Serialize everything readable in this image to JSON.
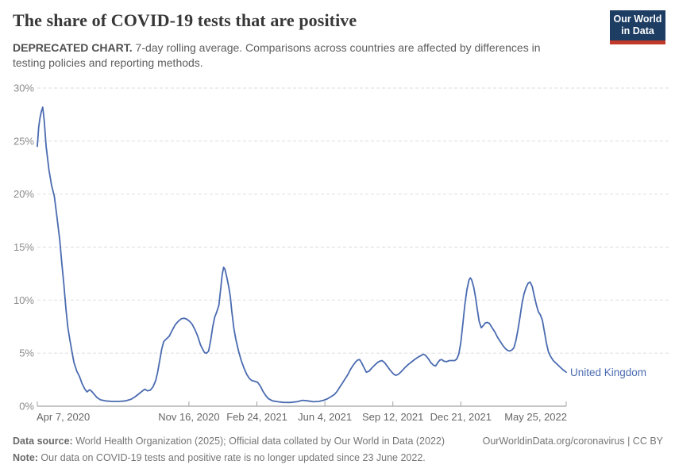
{
  "header": {
    "title": "The share of COVID-19 tests that are positive",
    "subtitle_bold": "DEPRECATED CHART.",
    "subtitle_rest": " 7-day rolling average. Comparisons across countries are affected by differences in testing policies and reporting methods.",
    "logo_line1": "Our World",
    "logo_line2": "in Data"
  },
  "footer": {
    "source_bold": "Data source:",
    "source_rest": " World Health Organization (2025); Official data collated by Our World in Data (2022)",
    "rights": "OurWorldinData.org/coronavirus | CC BY",
    "note_bold": "Note:",
    "note_rest": " Our data on COVID-19 tests and positive rate is no longer updated since 23 June 2022."
  },
  "colors": {
    "line": "#4a6bb0",
    "series_label": "#4a6bb0",
    "logo_navy": "#1d3d63",
    "logo_red": "#c0392b",
    "gridline": "#e2e2e2",
    "axis": "#a3a3a3",
    "y_tick_label": "#8b8b8b",
    "x_tick_label": "#676767"
  },
  "chart_data": {
    "type": "line",
    "title": "The share of COVID-19 tests that are positive",
    "subtitle": "DEPRECATED CHART. 7-day rolling average. Comparisons across countries are affected by differences in testing policies and reporting methods.",
    "xlabel": "",
    "ylabel": "",
    "grid": "horizontal-dashed",
    "legend_position": "end-of-line",
    "ylim": [
      0,
      30
    ],
    "y_ticks": [
      0,
      5,
      10,
      15,
      20,
      25,
      30
    ],
    "y_tick_labels": [
      "0%",
      "5%",
      "10%",
      "15%",
      "20%",
      "25%",
      "30%"
    ],
    "x_domain_days": [
      0,
      778
    ],
    "x_ticks": [
      {
        "day": 0,
        "label": "Apr 7, 2020"
      },
      {
        "day": 223,
        "label": "Nov 16, 2020"
      },
      {
        "day": 323,
        "label": "Feb 24, 2021"
      },
      {
        "day": 423,
        "label": "Jun 4, 2021"
      },
      {
        "day": 523,
        "label": "Sep 12, 2021"
      },
      {
        "day": 623,
        "label": "Dec 21, 2021"
      },
      {
        "day": 778,
        "label": "May 25, 2022"
      }
    ],
    "series": [
      {
        "name": "United Kingdom",
        "color": "#4a6bb0",
        "points": [
          [
            0,
            24.5
          ],
          [
            2,
            26.3
          ],
          [
            4,
            27.2
          ],
          [
            6,
            27.8
          ],
          [
            8,
            28.2
          ],
          [
            10,
            27.0
          ],
          [
            13,
            24.5
          ],
          [
            17,
            22.3
          ],
          [
            21,
            20.8
          ],
          [
            25,
            19.8
          ],
          [
            29,
            17.8
          ],
          [
            33,
            15.7
          ],
          [
            36,
            13.5
          ],
          [
            39,
            11.5
          ],
          [
            42,
            9.2
          ],
          [
            45,
            7.4
          ],
          [
            48,
            6.2
          ],
          [
            51,
            5.1
          ],
          [
            54,
            4.1
          ],
          [
            58,
            3.3
          ],
          [
            62,
            2.8
          ],
          [
            66,
            2.1
          ],
          [
            70,
            1.6
          ],
          [
            73,
            1.35
          ],
          [
            77,
            1.55
          ],
          [
            80,
            1.4
          ],
          [
            84,
            1.1
          ],
          [
            88,
            0.8
          ],
          [
            93,
            0.6
          ],
          [
            100,
            0.5
          ],
          [
            110,
            0.45
          ],
          [
            120,
            0.45
          ],
          [
            130,
            0.5
          ],
          [
            138,
            0.65
          ],
          [
            144,
            0.9
          ],
          [
            150,
            1.2
          ],
          [
            155,
            1.45
          ],
          [
            158,
            1.6
          ],
          [
            162,
            1.45
          ],
          [
            166,
            1.5
          ],
          [
            170,
            1.8
          ],
          [
            174,
            2.4
          ],
          [
            177,
            3.2
          ],
          [
            180,
            4.3
          ],
          [
            183,
            5.4
          ],
          [
            186,
            6.1
          ],
          [
            190,
            6.35
          ],
          [
            194,
            6.6
          ],
          [
            198,
            7.1
          ],
          [
            203,
            7.7
          ],
          [
            208,
            8.05
          ],
          [
            212,
            8.25
          ],
          [
            216,
            8.3
          ],
          [
            220,
            8.2
          ],
          [
            224,
            8.0
          ],
          [
            228,
            7.7
          ],
          [
            232,
            7.2
          ],
          [
            236,
            6.6
          ],
          [
            240,
            5.8
          ],
          [
            243,
            5.4
          ],
          [
            246,
            5.05
          ],
          [
            249,
            5.0
          ],
          [
            252,
            5.2
          ],
          [
            255,
            6.2
          ],
          [
            258,
            7.5
          ],
          [
            261,
            8.4
          ],
          [
            264,
            8.9
          ],
          [
            267,
            9.5
          ],
          [
            270,
            11.2
          ],
          [
            272,
            12.4
          ],
          [
            274,
            13.1
          ],
          [
            276,
            12.9
          ],
          [
            279,
            12.1
          ],
          [
            282,
            11.1
          ],
          [
            284,
            10.3
          ],
          [
            286,
            9.0
          ],
          [
            289,
            7.4
          ],
          [
            292,
            6.3
          ],
          [
            296,
            5.2
          ],
          [
            300,
            4.3
          ],
          [
            304,
            3.6
          ],
          [
            308,
            3.0
          ],
          [
            312,
            2.6
          ],
          [
            316,
            2.4
          ],
          [
            320,
            2.35
          ],
          [
            324,
            2.25
          ],
          [
            328,
            1.9
          ],
          [
            332,
            1.4
          ],
          [
            336,
            1.0
          ],
          [
            340,
            0.7
          ],
          [
            346,
            0.5
          ],
          [
            354,
            0.42
          ],
          [
            362,
            0.36
          ],
          [
            372,
            0.35
          ],
          [
            382,
            0.42
          ],
          [
            390,
            0.55
          ],
          [
            398,
            0.5
          ],
          [
            406,
            0.42
          ],
          [
            414,
            0.45
          ],
          [
            421,
            0.55
          ],
          [
            427,
            0.7
          ],
          [
            432,
            0.9
          ],
          [
            437,
            1.1
          ],
          [
            441,
            1.4
          ],
          [
            445,
            1.8
          ],
          [
            449,
            2.2
          ],
          [
            453,
            2.6
          ],
          [
            457,
            3.0
          ],
          [
            461,
            3.5
          ],
          [
            465,
            3.9
          ],
          [
            468,
            4.15
          ],
          [
            471,
            4.35
          ],
          [
            474,
            4.4
          ],
          [
            477,
            4.1
          ],
          [
            480,
            3.7
          ],
          [
            484,
            3.2
          ],
          [
            488,
            3.3
          ],
          [
            492,
            3.6
          ],
          [
            496,
            3.85
          ],
          [
            500,
            4.1
          ],
          [
            504,
            4.25
          ],
          [
            507,
            4.3
          ],
          [
            511,
            4.1
          ],
          [
            515,
            3.75
          ],
          [
            519,
            3.4
          ],
          [
            523,
            3.1
          ],
          [
            527,
            2.9
          ],
          [
            531,
            3.0
          ],
          [
            536,
            3.3
          ],
          [
            541,
            3.65
          ],
          [
            546,
            3.95
          ],
          [
            551,
            4.2
          ],
          [
            556,
            4.45
          ],
          [
            561,
            4.65
          ],
          [
            565,
            4.8
          ],
          [
            568,
            4.9
          ],
          [
            571,
            4.8
          ],
          [
            575,
            4.5
          ],
          [
            579,
            4.1
          ],
          [
            583,
            3.85
          ],
          [
            586,
            3.8
          ],
          [
            589,
            4.1
          ],
          [
            592,
            4.35
          ],
          [
            595,
            4.4
          ],
          [
            598,
            4.25
          ],
          [
            602,
            4.2
          ],
          [
            606,
            4.3
          ],
          [
            610,
            4.3
          ],
          [
            614,
            4.3
          ],
          [
            617,
            4.45
          ],
          [
            620,
            4.9
          ],
          [
            623,
            6.0
          ],
          [
            626,
            7.8
          ],
          [
            629,
            9.6
          ],
          [
            632,
            11.0
          ],
          [
            635,
            11.9
          ],
          [
            637,
            12.1
          ],
          [
            639,
            11.9
          ],
          [
            642,
            11.2
          ],
          [
            644,
            10.5
          ],
          [
            647,
            9.2
          ],
          [
            650,
            8.0
          ],
          [
            653,
            7.4
          ],
          [
            656,
            7.6
          ],
          [
            659,
            7.85
          ],
          [
            662,
            7.9
          ],
          [
            665,
            7.8
          ],
          [
            669,
            7.4
          ],
          [
            673,
            7.0
          ],
          [
            677,
            6.5
          ],
          [
            681,
            6.1
          ],
          [
            685,
            5.7
          ],
          [
            689,
            5.4
          ],
          [
            692,
            5.25
          ],
          [
            695,
            5.2
          ],
          [
            698,
            5.3
          ],
          [
            701,
            5.5
          ],
          [
            704,
            6.2
          ],
          [
            707,
            7.2
          ],
          [
            710,
            8.4
          ],
          [
            713,
            9.7
          ],
          [
            716,
            10.6
          ],
          [
            719,
            11.2
          ],
          [
            722,
            11.6
          ],
          [
            725,
            11.7
          ],
          [
            728,
            11.3
          ],
          [
            731,
            10.4
          ],
          [
            734,
            9.6
          ],
          [
            737,
            8.9
          ],
          [
            740,
            8.6
          ],
          [
            743,
            8.1
          ],
          [
            746,
            7.0
          ],
          [
            749,
            5.9
          ],
          [
            752,
            5.1
          ],
          [
            755,
            4.7
          ],
          [
            759,
            4.3
          ],
          [
            763,
            4.05
          ],
          [
            768,
            3.75
          ],
          [
            773,
            3.45
          ],
          [
            778,
            3.2
          ]
        ]
      }
    ]
  }
}
